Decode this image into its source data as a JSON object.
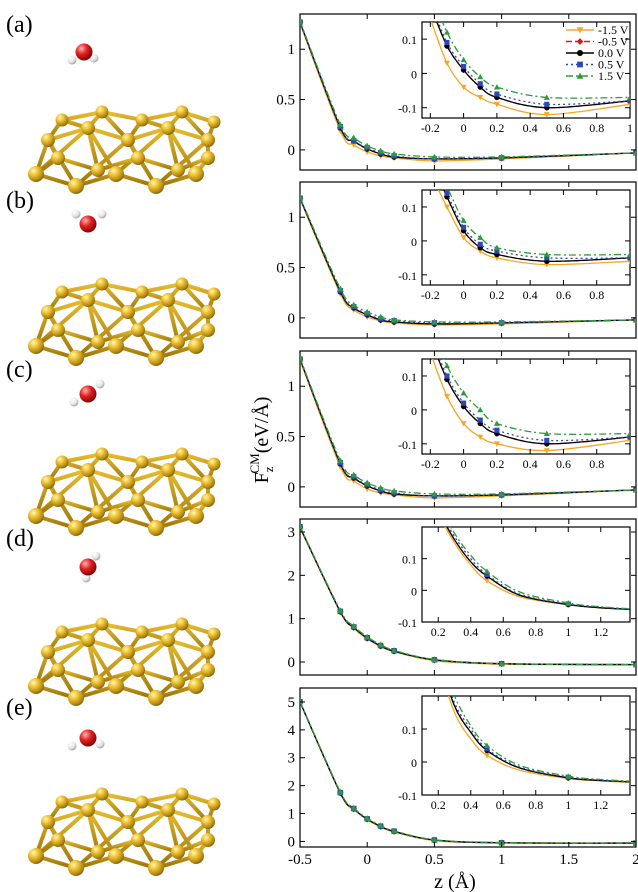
{
  "figure": {
    "y_label_main": "F",
    "y_label_sub": "z",
    "y_label_sup": "CM",
    "y_label_unit": "(eV/Å)",
    "x_label": "z (Å)",
    "x_ticks": [
      "-0.5",
      "0",
      "0.5",
      "1",
      "1.5",
      "2"
    ],
    "panel_labels": [
      "(a)",
      "(b)",
      "(c)",
      "(d)",
      "(e)"
    ]
  },
  "legend": {
    "entries": [
      {
        "label": "-1.5 V",
        "color": "#f5a623",
        "marker": "triangle-down",
        "dash": "solid"
      },
      {
        "label": "-0.5 V",
        "color": "#d0201a",
        "marker": "diamond",
        "dash": "dash"
      },
      {
        "label": "0.0 V",
        "color": "#000000",
        "marker": "circle",
        "dash": "solid"
      },
      {
        "label": "0.5 V",
        "color": "#2f48b8",
        "marker": "square",
        "dash": "dot"
      },
      {
        "label": "1.5 V",
        "color": "#2e9a3c",
        "marker": "triangle-up",
        "dash": "dashdot"
      }
    ]
  },
  "chart_data": [
    {
      "panel": "(a)",
      "type": "line",
      "xlim": [
        -0.5,
        2.0
      ],
      "ylim": [
        -0.2,
        1.35
      ],
      "y_ticks": [
        "0",
        "0.5",
        "1"
      ],
      "x": [
        -0.5,
        -0.2,
        -0.1,
        0.0,
        0.1,
        0.2,
        0.5,
        1.0,
        2.0
      ],
      "series": [
        {
          "name": "-1.5 V",
          "values": [
            1.26,
            0.19,
            0.05,
            -0.02,
            -0.06,
            -0.08,
            -0.11,
            -0.09,
            -0.03
          ]
        },
        {
          "name": "-0.5 V",
          "values": [
            1.27,
            0.22,
            0.09,
            0.01,
            -0.04,
            -0.07,
            -0.09,
            -0.08,
            -0.03
          ]
        },
        {
          "name": "0.0 V",
          "values": [
            1.27,
            0.22,
            0.09,
            0.01,
            -0.04,
            -0.07,
            -0.09,
            -0.08,
            -0.03
          ]
        },
        {
          "name": "0.5 V",
          "values": [
            1.27,
            0.23,
            0.09,
            0.02,
            -0.03,
            -0.06,
            -0.09,
            -0.08,
            -0.03
          ]
        },
        {
          "name": "1.5 V",
          "values": [
            1.28,
            0.25,
            0.12,
            0.04,
            -0.01,
            -0.04,
            -0.07,
            -0.07,
            -0.03
          ]
        }
      ],
      "inset": {
        "xlim": [
          -0.25,
          1.0
        ],
        "ylim": [
          -0.13,
          0.15
        ],
        "x_ticks": [
          "-0.2",
          "0",
          "0.2",
          "0.4",
          "0.6",
          "0.8",
          "1"
        ],
        "y_ticks": [
          "-0.1",
          "0",
          "0.1"
        ],
        "x": [
          -0.2,
          -0.1,
          0.0,
          0.1,
          0.2,
          0.5,
          1.0
        ],
        "series": [
          {
            "name": "-1.5 V",
            "values": [
              0.16,
              0.03,
              -0.04,
              -0.07,
              -0.09,
              -0.12,
              -0.09
            ]
          },
          {
            "name": "-0.5 V",
            "values": [
              0.2,
              0.08,
              0.01,
              -0.04,
              -0.07,
              -0.1,
              -0.08
            ]
          },
          {
            "name": "0.0 V",
            "values": [
              0.2,
              0.08,
              0.01,
              -0.04,
              -0.07,
              -0.1,
              -0.08
            ]
          },
          {
            "name": "0.5 V",
            "values": [
              0.21,
              0.09,
              0.02,
              -0.03,
              -0.06,
              -0.09,
              -0.08
            ]
          },
          {
            "name": "1.5 V",
            "values": [
              0.24,
              0.12,
              0.04,
              -0.01,
              -0.04,
              -0.07,
              -0.07
            ]
          }
        ]
      }
    },
    {
      "panel": "(b)",
      "type": "line",
      "xlim": [
        -0.5,
        2.0
      ],
      "ylim": [
        -0.2,
        1.35
      ],
      "y_ticks": [
        "0",
        "0.5",
        "1"
      ],
      "x": [
        -0.5,
        -0.2,
        -0.1,
        0.0,
        0.1,
        0.2,
        0.5,
        1.0,
        2.0
      ],
      "series": [
        {
          "name": "-1.5 V",
          "values": [
            1.18,
            0.24,
            0.08,
            0.01,
            -0.03,
            -0.05,
            -0.07,
            -0.06,
            -0.02
          ]
        },
        {
          "name": "-0.5 V",
          "values": [
            1.19,
            0.26,
            0.1,
            0.03,
            -0.02,
            -0.04,
            -0.06,
            -0.05,
            -0.02
          ]
        },
        {
          "name": "0.0 V",
          "values": [
            1.19,
            0.26,
            0.1,
            0.03,
            -0.02,
            -0.04,
            -0.06,
            -0.05,
            -0.02
          ]
        },
        {
          "name": "0.5 V",
          "values": [
            1.19,
            0.27,
            0.11,
            0.04,
            -0.01,
            -0.03,
            -0.05,
            -0.05,
            -0.02
          ]
        },
        {
          "name": "1.5 V",
          "values": [
            1.2,
            0.29,
            0.13,
            0.06,
            0.01,
            -0.02,
            -0.04,
            -0.04,
            -0.02
          ]
        }
      ],
      "inset": {
        "xlim": [
          -0.25,
          1.0
        ],
        "ylim": [
          -0.13,
          0.15
        ],
        "x_ticks": [
          "-0.2",
          "0",
          "0.2",
          "0.4",
          "0.6",
          "0.8"
        ],
        "y_ticks": [
          "-0.1",
          "0",
          "0.1"
        ],
        "x": [
          -0.2,
          -0.1,
          0.0,
          0.1,
          0.2,
          0.5,
          1.0
        ],
        "series": [
          {
            "name": "-1.5 V",
            "values": [
              0.2,
              0.1,
              0.01,
              -0.03,
              -0.05,
              -0.07,
              -0.06
            ]
          },
          {
            "name": "-0.5 V",
            "values": [
              0.24,
              0.13,
              0.03,
              -0.02,
              -0.04,
              -0.06,
              -0.05
            ]
          },
          {
            "name": "0.0 V",
            "values": [
              0.24,
              0.13,
              0.03,
              -0.02,
              -0.04,
              -0.06,
              -0.05
            ]
          },
          {
            "name": "0.5 V",
            "values": [
              0.25,
              0.14,
              0.04,
              -0.01,
              -0.03,
              -0.05,
              -0.05
            ]
          },
          {
            "name": "1.5 V",
            "values": [
              0.27,
              0.16,
              0.06,
              0.01,
              -0.02,
              -0.04,
              -0.04
            ]
          }
        ]
      }
    },
    {
      "panel": "(c)",
      "type": "line",
      "xlim": [
        -0.5,
        2.0
      ],
      "ylim": [
        -0.2,
        1.35
      ],
      "y_ticks": [
        "0",
        "0.5",
        "1"
      ],
      "x": [
        -0.5,
        -0.2,
        -0.1,
        0.0,
        0.1,
        0.2,
        0.5,
        1.0,
        2.0
      ],
      "series": [
        {
          "name": "-1.5 V",
          "values": [
            1.26,
            0.2,
            0.06,
            -0.02,
            -0.06,
            -0.08,
            -0.11,
            -0.09,
            -0.03
          ]
        },
        {
          "name": "-0.5 V",
          "values": [
            1.27,
            0.23,
            0.09,
            0.01,
            -0.04,
            -0.07,
            -0.09,
            -0.08,
            -0.03
          ]
        },
        {
          "name": "0.0 V",
          "values": [
            1.27,
            0.23,
            0.09,
            0.01,
            -0.04,
            -0.07,
            -0.09,
            -0.08,
            -0.03
          ]
        },
        {
          "name": "0.5 V",
          "values": [
            1.27,
            0.24,
            0.1,
            0.02,
            -0.03,
            -0.06,
            -0.09,
            -0.08,
            -0.03
          ]
        },
        {
          "name": "1.5 V",
          "values": [
            1.28,
            0.26,
            0.12,
            0.04,
            -0.01,
            -0.04,
            -0.07,
            -0.07,
            -0.03
          ]
        }
      ],
      "inset": {
        "xlim": [
          -0.25,
          1.0
        ],
        "ylim": [
          -0.13,
          0.15
        ],
        "x_ticks": [
          "-0.2",
          "0",
          "0.2",
          "0.4",
          "0.6",
          "0.8"
        ],
        "y_ticks": [
          "-0.1",
          "0",
          "0.1"
        ],
        "x": [
          -0.2,
          -0.1,
          0.0,
          0.1,
          0.2,
          0.5,
          1.0
        ],
        "series": [
          {
            "name": "-1.5 V",
            "values": [
              0.17,
              0.04,
              -0.04,
              -0.08,
              -0.1,
              -0.12,
              -0.09
            ]
          },
          {
            "name": "-0.5 V",
            "values": [
              0.21,
              0.09,
              0.01,
              -0.04,
              -0.07,
              -0.1,
              -0.08
            ]
          },
          {
            "name": "0.0 V",
            "values": [
              0.21,
              0.09,
              0.01,
              -0.04,
              -0.07,
              -0.1,
              -0.08
            ]
          },
          {
            "name": "0.5 V",
            "values": [
              0.22,
              0.1,
              0.02,
              -0.03,
              -0.06,
              -0.09,
              -0.08
            ]
          },
          {
            "name": "1.5 V",
            "values": [
              0.25,
              0.13,
              0.05,
              0.0,
              -0.04,
              -0.07,
              -0.07
            ]
          }
        ]
      }
    },
    {
      "panel": "(d)",
      "type": "line",
      "xlim": [
        -0.5,
        2.0
      ],
      "ylim": [
        -0.3,
        3.3
      ],
      "y_ticks": [
        "0",
        "1",
        "2",
        "3"
      ],
      "x": [
        -0.5,
        -0.2,
        -0.1,
        0.0,
        0.1,
        0.2,
        0.5,
        1.0,
        2.0
      ],
      "series": [
        {
          "name": "-1.5 V",
          "values": [
            3.1,
            1.15,
            0.78,
            0.53,
            0.36,
            0.24,
            0.03,
            -0.05,
            -0.06
          ]
        },
        {
          "name": "-0.5 V",
          "values": [
            3.11,
            1.16,
            0.8,
            0.55,
            0.37,
            0.25,
            0.05,
            -0.04,
            -0.06
          ]
        },
        {
          "name": "0.0 V",
          "values": [
            3.11,
            1.16,
            0.8,
            0.55,
            0.37,
            0.25,
            0.05,
            -0.04,
            -0.06
          ]
        },
        {
          "name": "0.5 V",
          "values": [
            3.12,
            1.17,
            0.81,
            0.56,
            0.38,
            0.26,
            0.05,
            -0.04,
            -0.06
          ]
        },
        {
          "name": "1.5 V",
          "values": [
            3.13,
            1.19,
            0.83,
            0.58,
            0.4,
            0.27,
            0.06,
            -0.04,
            -0.06
          ]
        }
      ],
      "inset": {
        "xlim": [
          0.1,
          1.38
        ],
        "ylim": [
          -0.1,
          0.2
        ],
        "x_ticks": [
          "0.2",
          "0.4",
          "0.6",
          "0.8",
          "1",
          "1.2"
        ],
        "y_ticks": [
          "-0.1",
          "0",
          "0.1"
        ],
        "x": [
          0.2,
          0.3,
          0.4,
          0.5,
          0.7,
          1.0,
          1.2,
          1.38
        ],
        "series": [
          {
            "name": "-1.5 V",
            "values": [
              0.24,
              0.15,
              0.08,
              0.03,
              -0.02,
              -0.045,
              -0.055,
              -0.06
            ]
          },
          {
            "name": "-0.5 V",
            "values": [
              0.25,
              0.16,
              0.09,
              0.045,
              -0.015,
              -0.045,
              -0.055,
              -0.06
            ]
          },
          {
            "name": "0.0 V",
            "values": [
              0.25,
              0.16,
              0.09,
              0.045,
              -0.015,
              -0.045,
              -0.055,
              -0.06
            ]
          },
          {
            "name": "0.5 V",
            "values": [
              0.26,
              0.17,
              0.1,
              0.05,
              -0.012,
              -0.043,
              -0.053,
              -0.06
            ]
          },
          {
            "name": "1.5 V",
            "values": [
              0.27,
              0.18,
              0.11,
              0.06,
              -0.005,
              -0.04,
              -0.052,
              -0.058
            ]
          }
        ]
      }
    },
    {
      "panel": "(e)",
      "type": "line",
      "xlim": [
        -0.5,
        2.0
      ],
      "ylim": [
        -0.2,
        5.5
      ],
      "y_ticks": [
        "0",
        "1",
        "2",
        "3",
        "4",
        "5"
      ],
      "x": [
        -0.5,
        -0.2,
        -0.1,
        0.0,
        0.1,
        0.2,
        0.5,
        1.0,
        2.0
      ],
      "series": [
        {
          "name": "-1.5 V",
          "values": [
            5.0,
            1.72,
            1.15,
            0.78,
            0.52,
            0.34,
            0.03,
            -0.05,
            -0.06
          ]
        },
        {
          "name": "-0.5 V",
          "values": [
            5.0,
            1.74,
            1.17,
            0.8,
            0.54,
            0.36,
            0.05,
            -0.05,
            -0.06
          ]
        },
        {
          "name": "0.0 V",
          "values": [
            5.0,
            1.74,
            1.17,
            0.8,
            0.54,
            0.36,
            0.05,
            -0.05,
            -0.06
          ]
        },
        {
          "name": "0.5 V",
          "values": [
            5.01,
            1.75,
            1.18,
            0.81,
            0.55,
            0.37,
            0.05,
            -0.05,
            -0.06
          ]
        },
        {
          "name": "1.5 V",
          "values": [
            5.02,
            1.78,
            1.2,
            0.83,
            0.57,
            0.38,
            0.06,
            -0.04,
            -0.06
          ]
        }
      ],
      "inset": {
        "xlim": [
          0.1,
          1.38
        ],
        "ylim": [
          -0.1,
          0.2
        ],
        "x_ticks": [
          "0.2",
          "0.4",
          "0.6",
          "0.8",
          "1",
          "1.2"
        ],
        "y_ticks": [
          "-0.1",
          "0",
          "0.1"
        ],
        "x": [
          0.2,
          0.3,
          0.4,
          0.5,
          0.7,
          1.0,
          1.2,
          1.38
        ],
        "series": [
          {
            "name": "-1.5 V",
            "values": [
              0.3,
              0.15,
              0.07,
              0.02,
              -0.025,
              -0.05,
              -0.057,
              -0.062
            ]
          },
          {
            "name": "-0.5 V",
            "values": [
              0.32,
              0.17,
              0.09,
              0.035,
              -0.018,
              -0.048,
              -0.056,
              -0.06
            ]
          },
          {
            "name": "0.0 V",
            "values": [
              0.32,
              0.17,
              0.09,
              0.035,
              -0.018,
              -0.048,
              -0.056,
              -0.06
            ]
          },
          {
            "name": "0.5 V",
            "values": [
              0.33,
              0.18,
              0.1,
              0.04,
              -0.015,
              -0.046,
              -0.055,
              -0.06
            ]
          },
          {
            "name": "1.5 V",
            "values": [
              0.34,
              0.2,
              0.11,
              0.05,
              -0.01,
              -0.043,
              -0.053,
              -0.058
            ]
          }
        ]
      }
    }
  ]
}
